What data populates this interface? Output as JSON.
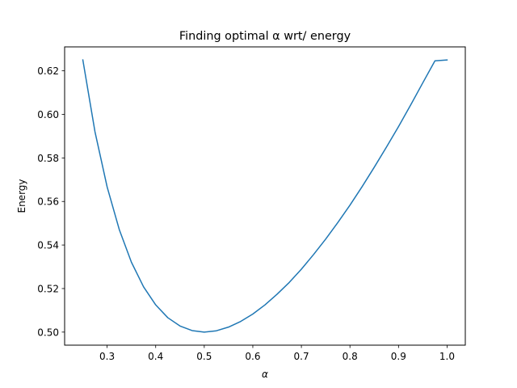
{
  "chart_data": {
    "type": "line",
    "title": "Finding optimal α wrt/ energy",
    "xlabel": "α",
    "ylabel": "Energy",
    "xlim": [
      0.2125,
      1.0375
    ],
    "ylim": [
      0.494,
      0.631
    ],
    "xticks": [
      0.3,
      0.4,
      0.5,
      0.6,
      0.7,
      0.8,
      0.9,
      1.0
    ],
    "xtick_labels": [
      "0.3",
      "0.4",
      "0.5",
      "0.6",
      "0.7",
      "0.8",
      "0.9",
      "1.0"
    ],
    "yticks": [
      0.5,
      0.52,
      0.54,
      0.56,
      0.58,
      0.6,
      0.62
    ],
    "ytick_labels": [
      "0.50",
      "0.52",
      "0.54",
      "0.56",
      "0.58",
      "0.60",
      "0.62"
    ],
    "grid": false,
    "legend": "none",
    "series": [
      {
        "color": "#1f77b4",
        "x": [
          0.25,
          0.275,
          0.3,
          0.325,
          0.35,
          0.375,
          0.4,
          0.425,
          0.45,
          0.475,
          0.5,
          0.525,
          0.55,
          0.575,
          0.6,
          0.625,
          0.65,
          0.675,
          0.7,
          0.725,
          0.75,
          0.775,
          0.8,
          0.825,
          0.85,
          0.875,
          0.9,
          0.925,
          0.95,
          0.975,
          1.0
        ],
        "y": [
          0.625,
          0.592,
          0.5667,
          0.5471,
          0.5321,
          0.5208,
          0.5125,
          0.5066,
          0.5028,
          0.5007,
          0.5,
          0.5006,
          0.5023,
          0.5049,
          0.5083,
          0.5125,
          0.5174,
          0.5228,
          0.5289,
          0.5356,
          0.5427,
          0.5503,
          0.5583,
          0.5668,
          0.5757,
          0.5849,
          0.5944,
          0.6043,
          0.6145,
          0.6246,
          0.625
        ]
      }
    ]
  }
}
